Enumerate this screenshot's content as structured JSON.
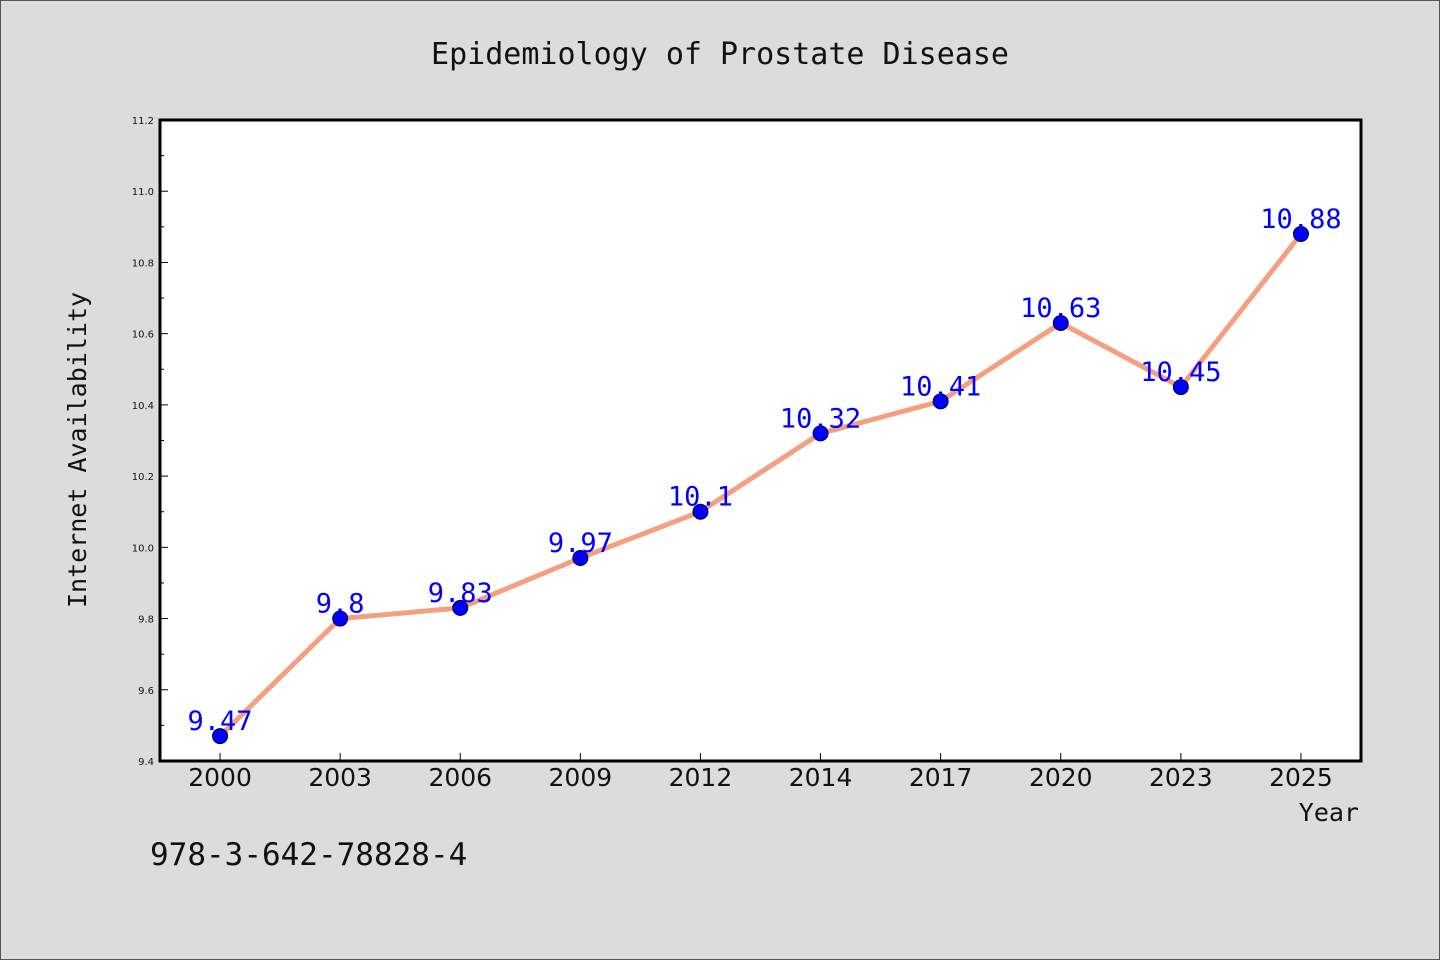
{
  "chart_data": {
    "type": "line",
    "title": "Epidemiology of Prostate Disease",
    "xlabel": "Year",
    "ylabel": "Internet Availability",
    "categories": [
      "2000",
      "2003",
      "2006",
      "2009",
      "2012",
      "2014",
      "2017",
      "2020",
      "2023",
      "2025"
    ],
    "series": [
      {
        "values": [
          9.47,
          9.8,
          9.83,
          9.97,
          10.1,
          10.32,
          10.41,
          10.63,
          10.45,
          10.88
        ],
        "data_labels": [
          "9.47",
          "9.8",
          "9.83",
          "9.97",
          "10.1",
          "10.32",
          "10.41",
          "10.63",
          "10.45",
          "10.88"
        ],
        "line_color": "#f4a080",
        "marker_color": "#0000ff"
      }
    ],
    "ylim": [
      9.4,
      11.2
    ],
    "yticks": [
      "9.4",
      "9.6",
      "9.8",
      "10.0",
      "10.2",
      "10.4",
      "10.6",
      "10.8",
      "11.0",
      "11.2"
    ],
    "grid": false,
    "legend": "none"
  },
  "footer": {
    "isbn": "978-3-642-78828-4"
  },
  "colors": {
    "background": "#dcdcdc",
    "plot_area": "#ffffff",
    "label_color": "#0000ff"
  }
}
